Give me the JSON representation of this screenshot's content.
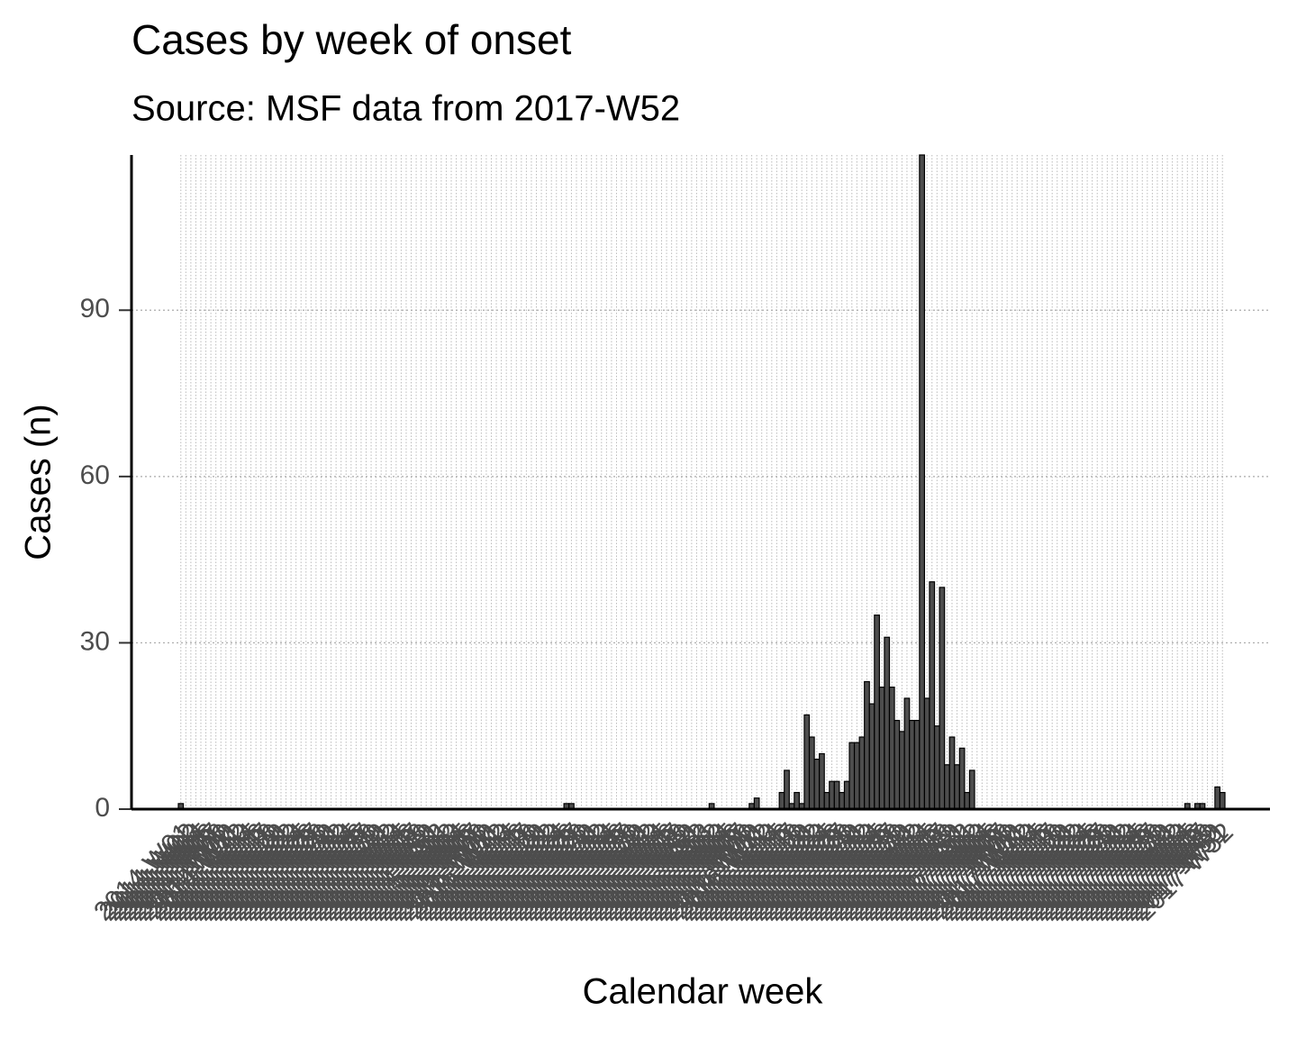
{
  "chart_data": {
    "type": "bar",
    "title": "Cases by week of onset",
    "subtitle": "Source: MSF data from 2017-W52",
    "x_label": "Calendar week",
    "y_label": "Cases (n)",
    "categories": [
      "2014-W01",
      "2014-W02",
      "2014-W03",
      "2014-W04",
      "2014-W05",
      "2014-W06",
      "2014-W07",
      "2014-W08",
      "2014-W09",
      "2014-W10",
      "2014-W11",
      "2014-W12",
      "2014-W13",
      "2014-W14",
      "2014-W15",
      "2014-W16",
      "2014-W17",
      "2014-W18",
      "2014-W19",
      "2014-W20",
      "2014-W21",
      "2014-W22",
      "2014-W23",
      "2014-W24",
      "2014-W25",
      "2014-W26",
      "2014-W27",
      "2014-W28",
      "2014-W29",
      "2014-W30",
      "2014-W31",
      "2014-W32",
      "2014-W33",
      "2014-W34",
      "2014-W35",
      "2014-W36",
      "2014-W37",
      "2014-W38",
      "2014-W39",
      "2014-W40",
      "2014-W41",
      "2014-W42",
      "2014-W43",
      "2014-W44",
      "2014-W45",
      "2014-W46",
      "2014-W47",
      "2014-W48",
      "2014-W49",
      "2014-W50",
      "2014-W51",
      "2014-W52",
      "2015-W01",
      "2015-W02",
      "2015-W03",
      "2015-W04",
      "2015-W05",
      "2015-W06",
      "2015-W07",
      "2015-W08",
      "2015-W09",
      "2015-W10",
      "2015-W11",
      "2015-W12",
      "2015-W13",
      "2015-W14",
      "2015-W15",
      "2015-W16",
      "2015-W17",
      "2015-W18",
      "2015-W19",
      "2015-W20",
      "2015-W21",
      "2015-W22",
      "2015-W23",
      "2015-W24",
      "2015-W25",
      "2015-W26",
      "2015-W27",
      "2015-W28",
      "2015-W29",
      "2015-W30",
      "2015-W31",
      "2015-W32",
      "2015-W33",
      "2015-W34",
      "2015-W35",
      "2015-W36",
      "2015-W37",
      "2015-W38",
      "2015-W39",
      "2015-W40",
      "2015-W41",
      "2015-W42",
      "2015-W43",
      "2015-W44",
      "2015-W45",
      "2015-W46",
      "2015-W47",
      "2015-W48",
      "2015-W49",
      "2015-W50",
      "2015-W51",
      "2015-W52",
      "2015-W53",
      "2016-W01",
      "2016-W02",
      "2016-W03",
      "2016-W04",
      "2016-W05",
      "2016-W06",
      "2016-W07",
      "2016-W08",
      "2016-W09",
      "2016-W10",
      "2016-W11",
      "2016-W12",
      "2016-W13",
      "2016-W14",
      "2016-W15",
      "2016-W16",
      "2016-W17",
      "2016-W18",
      "2016-W19",
      "2016-W20",
      "2016-W21",
      "2016-W22",
      "2016-W23",
      "2016-W24",
      "2016-W25",
      "2016-W26",
      "2016-W27",
      "2016-W28",
      "2016-W29",
      "2016-W30",
      "2016-W31",
      "2016-W32",
      "2016-W33",
      "2016-W34",
      "2016-W35",
      "2016-W36",
      "2016-W37",
      "2016-W38",
      "2016-W39",
      "2016-W40",
      "2016-W41",
      "2016-W42",
      "2016-W43",
      "2016-W44",
      "2016-W45",
      "2016-W46",
      "2016-W47",
      "2016-W48",
      "2016-W49",
      "2016-W50",
      "2016-W51",
      "2016-W52",
      "2017-W01",
      "2017-W02",
      "2017-W03",
      "2017-W04",
      "2017-W05",
      "2017-W06",
      "2017-W07",
      "2017-W08",
      "2017-W09",
      "2017-W10",
      "2017-W11",
      "2017-W12",
      "2017-W13",
      "2017-W14",
      "2017-W15",
      "2017-W16",
      "2017-W17",
      "2017-W18",
      "2017-W19",
      "2017-W20",
      "2017-W21",
      "2017-W22",
      "2017-W23",
      "2017-W24",
      "2017-W25",
      "2017-W26",
      "2017-W27",
      "2017-W28",
      "2017-W29",
      "2017-W30",
      "2017-W31",
      "2017-W32",
      "2017-W33",
      "2017-W34",
      "2017-W35",
      "2017-W36",
      "2017-W37",
      "2017-W38",
      "2017-W39",
      "2017-W40",
      "2017-W41",
      "2017-W42",
      "2017-W43",
      "2017-W44",
      "2017-W45",
      "2017-W46",
      "2017-W47",
      "2017-W48",
      "2017-W49",
      "2017-W50",
      "2017-W51",
      "2017-W52"
    ],
    "values": [
      1,
      0,
      0,
      0,
      0,
      0,
      0,
      0,
      0,
      0,
      0,
      0,
      0,
      0,
      0,
      0,
      0,
      0,
      0,
      0,
      0,
      0,
      0,
      0,
      0,
      0,
      0,
      0,
      0,
      0,
      0,
      0,
      0,
      0,
      0,
      0,
      0,
      0,
      0,
      0,
      0,
      0,
      0,
      0,
      0,
      0,
      0,
      0,
      0,
      0,
      0,
      0,
      0,
      0,
      0,
      0,
      0,
      0,
      0,
      0,
      0,
      0,
      0,
      0,
      0,
      0,
      0,
      0,
      0,
      0,
      0,
      0,
      0,
      0,
      0,
      0,
      0,
      1,
      1,
      0,
      0,
      0,
      0,
      0,
      0,
      0,
      0,
      0,
      0,
      0,
      0,
      0,
      0,
      0,
      0,
      0,
      0,
      0,
      0,
      0,
      0,
      0,
      0,
      0,
      0,
      0,
      1,
      0,
      0,
      0,
      0,
      0,
      0,
      0,
      1,
      2,
      0,
      0,
      0,
      0,
      3,
      7,
      1,
      3,
      1,
      17,
      13,
      9,
      10,
      3,
      5,
      5,
      3,
      5,
      12,
      12,
      13,
      23,
      19,
      35,
      22,
      31,
      22,
      16,
      14,
      20,
      16,
      16,
      118,
      20,
      41,
      15,
      40,
      8,
      13,
      8,
      11,
      3,
      7,
      0,
      0,
      0,
      0,
      0,
      0,
      0,
      0,
      0,
      0,
      0,
      0,
      0,
      0,
      0,
      0,
      0,
      0,
      0,
      0,
      0,
      0,
      0,
      0,
      0,
      0,
      0,
      0,
      0,
      0,
      0,
      0,
      0,
      0,
      0,
      0,
      0,
      0,
      0,
      0,
      0,
      0,
      1,
      0,
      1,
      1,
      0,
      0,
      4,
      3
    ],
    "color": "#4d4d4d",
    "ylim": [
      0,
      118
    ],
    "yticks": [
      0,
      30,
      60,
      90
    ],
    "grid": true
  }
}
